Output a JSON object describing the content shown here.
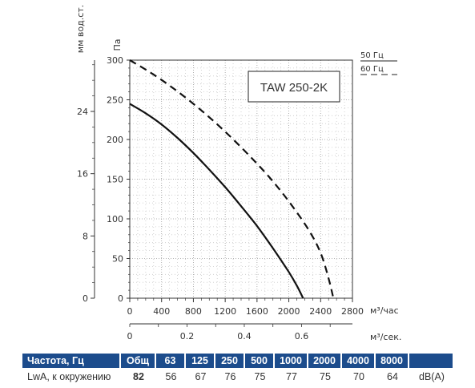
{
  "chart_data": {
    "type": "line",
    "model_label": "TAW 250-2K",
    "y_unit_pa": "Па",
    "y_unit_mm": "мм вод.ст.",
    "x_unit_m3h": "м³/час",
    "x_unit_m3s": "м³/сек.",
    "ylim": [
      0,
      300
    ],
    "xlim": [
      0,
      2800
    ],
    "y_ticks_pa": [
      "0",
      "50",
      "100",
      "150",
      "200",
      "250",
      "300"
    ],
    "y_ticks_mm": [
      "0",
      "8",
      "16",
      "24"
    ],
    "x_ticks_m3h": [
      "0",
      "400",
      "800",
      "1200",
      "1600",
      "2000",
      "2400",
      "2800"
    ],
    "x_ticks_m3s": [
      "0",
      "0.2",
      "0.4",
      "0.6"
    ],
    "legend": [
      {
        "name": "50 Гц",
        "style": "solid"
      },
      {
        "name": "60 Гц",
        "style": "dashed"
      }
    ],
    "series": [
      {
        "name": "50 Гц",
        "style": "solid",
        "x": [
          0,
          200,
          400,
          600,
          800,
          1000,
          1200,
          1400,
          1600,
          1800,
          2000,
          2100,
          2180
        ],
        "y": [
          245,
          233,
          219,
          202,
          183,
          162,
          140,
          116,
          91,
          63,
          33,
          16,
          0
        ]
      },
      {
        "name": "60 Гц",
        "style": "dashed",
        "x": [
          0,
          250,
          500,
          750,
          1000,
          1250,
          1500,
          1750,
          2000,
          2250,
          2400,
          2500,
          2560
        ],
        "y": [
          300,
          285,
          268,
          249,
          228,
          205,
          180,
          153,
          122,
          86,
          57,
          25,
          0
        ]
      }
    ]
  },
  "spectrum_table": {
    "header_label": "Частота, Гц",
    "total_label": "Общ",
    "bands": [
      "63",
      "125",
      "250",
      "500",
      "1000",
      "2000",
      "4000",
      "8000"
    ],
    "row_label": "LwA, к окружению",
    "total_value": "82",
    "values": [
      "56",
      "67",
      "76",
      "75",
      "77",
      "75",
      "70",
      "64"
    ],
    "unit": "dB(A)"
  },
  "colors": {
    "header_bg": "#1c4c8c",
    "curve": "#111111"
  }
}
